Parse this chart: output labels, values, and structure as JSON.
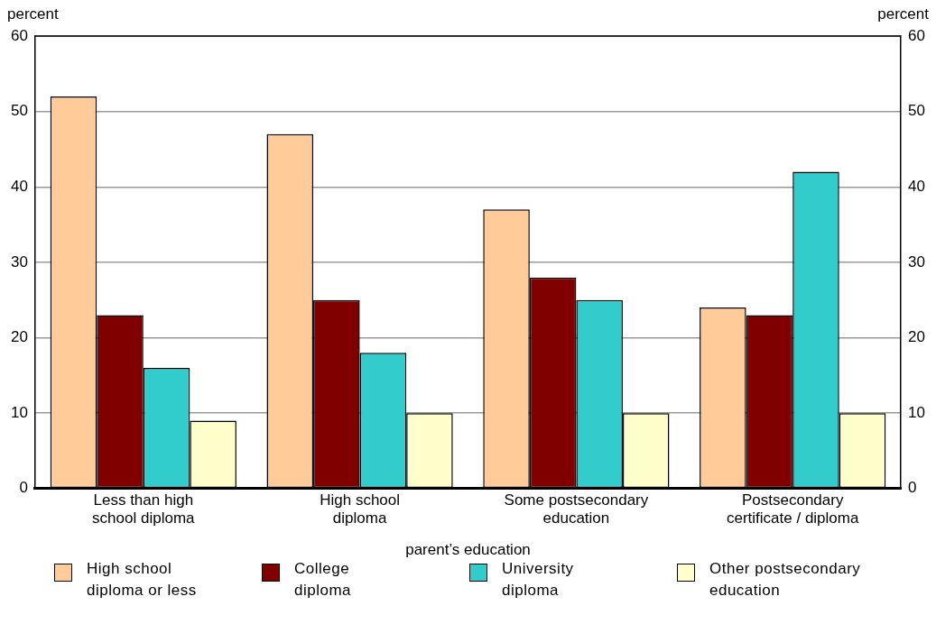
{
  "chart_data": {
    "type": "bar",
    "xlabel": "parent’s education",
    "ylabel": "percent",
    "y2label": "percent",
    "categories": [
      "Less than high school diploma",
      "High school diploma",
      "Some postsecondary education",
      "Postsecondary certificate / diploma"
    ],
    "series": [
      {
        "name": "High school diploma or less",
        "color": "#ffcc99",
        "values": [
          52,
          47,
          37,
          24
        ]
      },
      {
        "name": "College diploma",
        "color": "#800000",
        "values": [
          23,
          25,
          28,
          23
        ]
      },
      {
        "name": "University diploma",
        "color": "#33cccc",
        "values": [
          16,
          18,
          25,
          42
        ]
      },
      {
        "name": "Other postsecondary education",
        "color": "#ffffcc",
        "values": [
          9,
          10,
          10,
          10
        ]
      }
    ],
    "ylim": [
      0,
      60
    ],
    "yticks": [
      0,
      10,
      20,
      30,
      40,
      50,
      60
    ],
    "y2lim": [
      0,
      60
    ],
    "y2ticks": [
      0,
      10,
      20,
      30,
      40,
      50,
      60
    ],
    "grid": "y",
    "legend": "bottom"
  }
}
